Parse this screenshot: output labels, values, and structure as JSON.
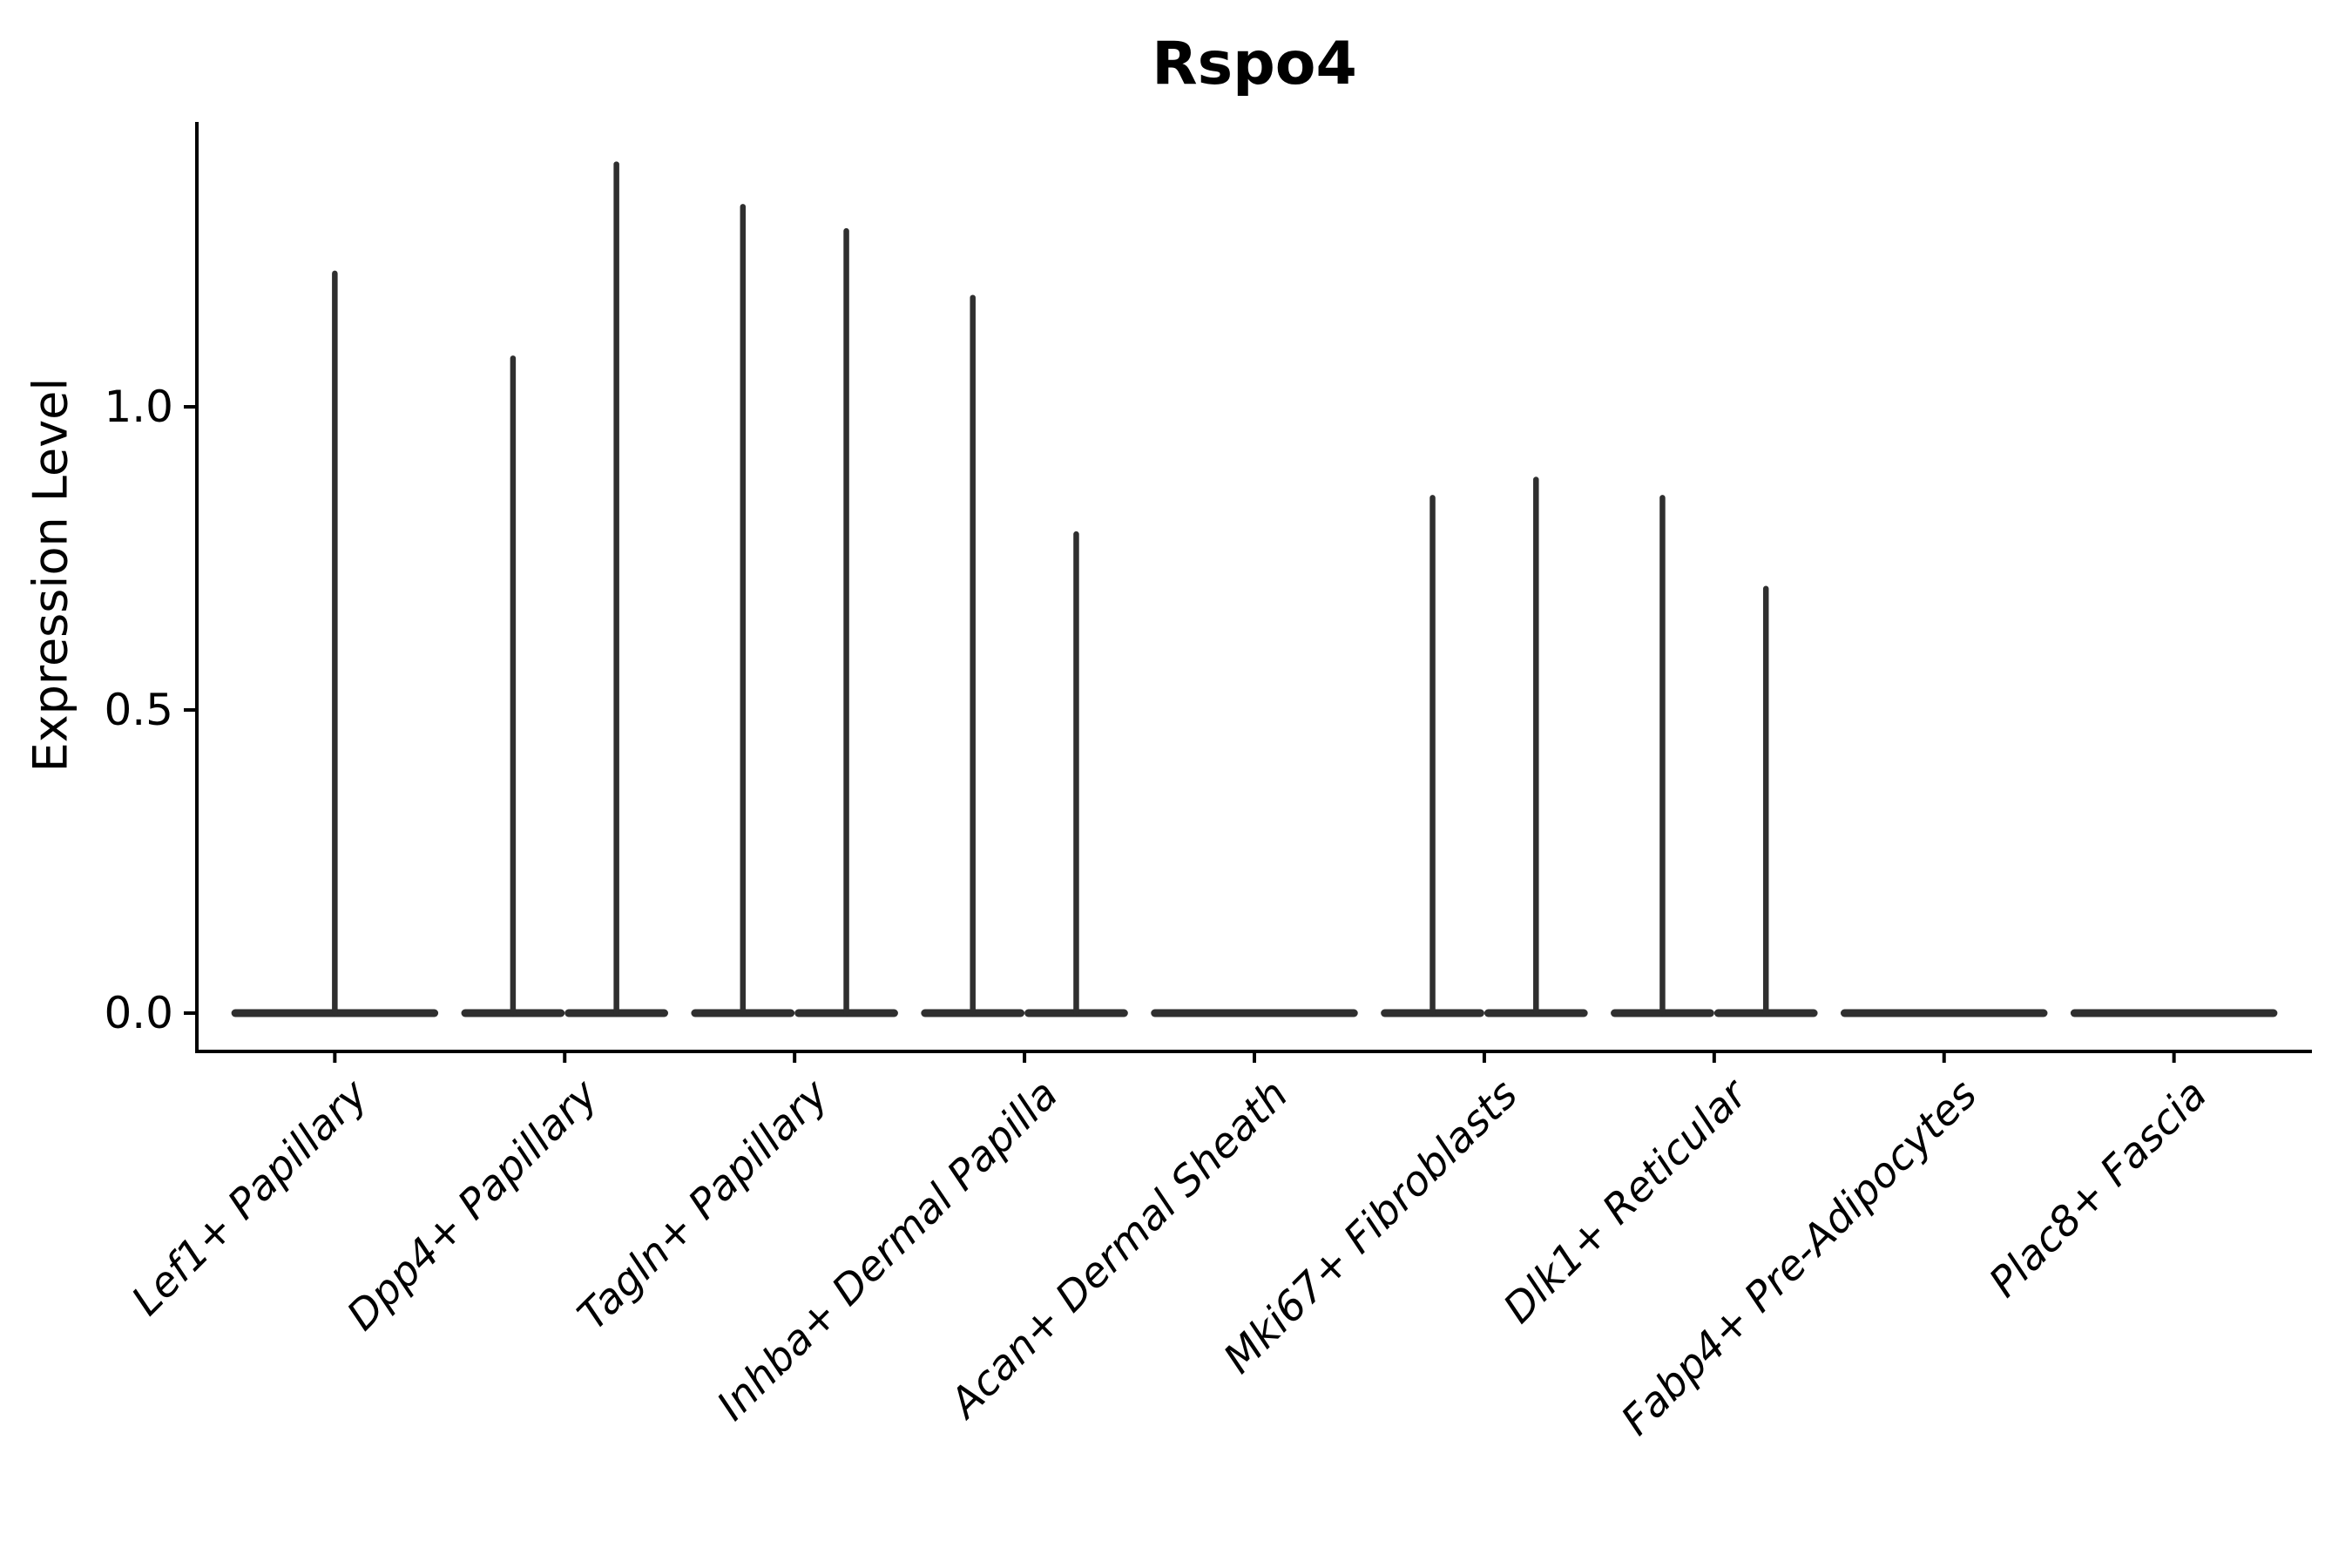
{
  "title": "Rspo4",
  "y_axis": {
    "label": "Expression Level",
    "tick_labels": [
      "1.0",
      "0.5",
      "0.0"
    ]
  },
  "colors": {
    "violin_fill": "#2f2f2f",
    "axis_color": "#000000",
    "text_color": "#000000",
    "background": "#ffffff"
  },
  "chart_data": {
    "type": "violin",
    "title": "Rspo4",
    "xlabel": "",
    "ylabel": "Expression Level",
    "ylim": [
      -0.063,
      1.47
    ],
    "yticks": [
      0.0,
      0.5,
      1.0
    ],
    "grid": false,
    "legend": "none",
    "categories": [
      "Lef1+ Papillary",
      "Dpp4+ Papillary",
      "Tagln+ Papillary",
      "Inhba+ Dermal Papilla",
      "Acan+ Dermal Sheath",
      "Mki67+ Fibroblasts",
      "Dlk1+ Reticular",
      "Fabp4+ Pre-Adipocytes",
      "Plac8+ Fascia"
    ],
    "violins": [
      {
        "category": "Lef1+ Papillary",
        "pos": 1.0,
        "width": 0.9,
        "max_expression": 1.22
      },
      {
        "category": "Dpp4+ Papillary",
        "pos": 1.775,
        "width": 0.45,
        "max_expression": 1.08
      },
      {
        "category": "Dpp4+ Papillary",
        "pos": 2.225,
        "width": 0.45,
        "max_expression": 1.4
      },
      {
        "category": "Tagln+ Papillary",
        "pos": 2.775,
        "width": 0.45,
        "max_expression": 1.33
      },
      {
        "category": "Tagln+ Papillary",
        "pos": 3.225,
        "width": 0.45,
        "max_expression": 1.29
      },
      {
        "category": "Inhba+ Dermal Papilla",
        "pos": 3.775,
        "width": 0.45,
        "max_expression": 1.18
      },
      {
        "category": "Inhba+ Dermal Papilla",
        "pos": 4.225,
        "width": 0.45,
        "max_expression": 0.79
      },
      {
        "category": "Acan+ Dermal Sheath",
        "pos": 5.0,
        "width": 0.9,
        "max_expression": 0.0
      },
      {
        "category": "Mki67+ Fibroblasts",
        "pos": 5.775,
        "width": 0.45,
        "max_expression": 0.85
      },
      {
        "category": "Mki67+ Fibroblasts",
        "pos": 6.225,
        "width": 0.45,
        "max_expression": 0.88
      },
      {
        "category": "Dlk1+ Reticular",
        "pos": 6.775,
        "width": 0.45,
        "max_expression": 0.85
      },
      {
        "category": "Dlk1+ Reticular",
        "pos": 7.225,
        "width": 0.45,
        "max_expression": 0.7
      },
      {
        "category": "Fabp4+ Pre-Adipocytes",
        "pos": 8.0,
        "width": 0.9,
        "max_expression": 0.0
      },
      {
        "category": "Plac8+ Fascia",
        "pos": 9.0,
        "width": 0.9,
        "max_expression": 0.0
      }
    ]
  }
}
